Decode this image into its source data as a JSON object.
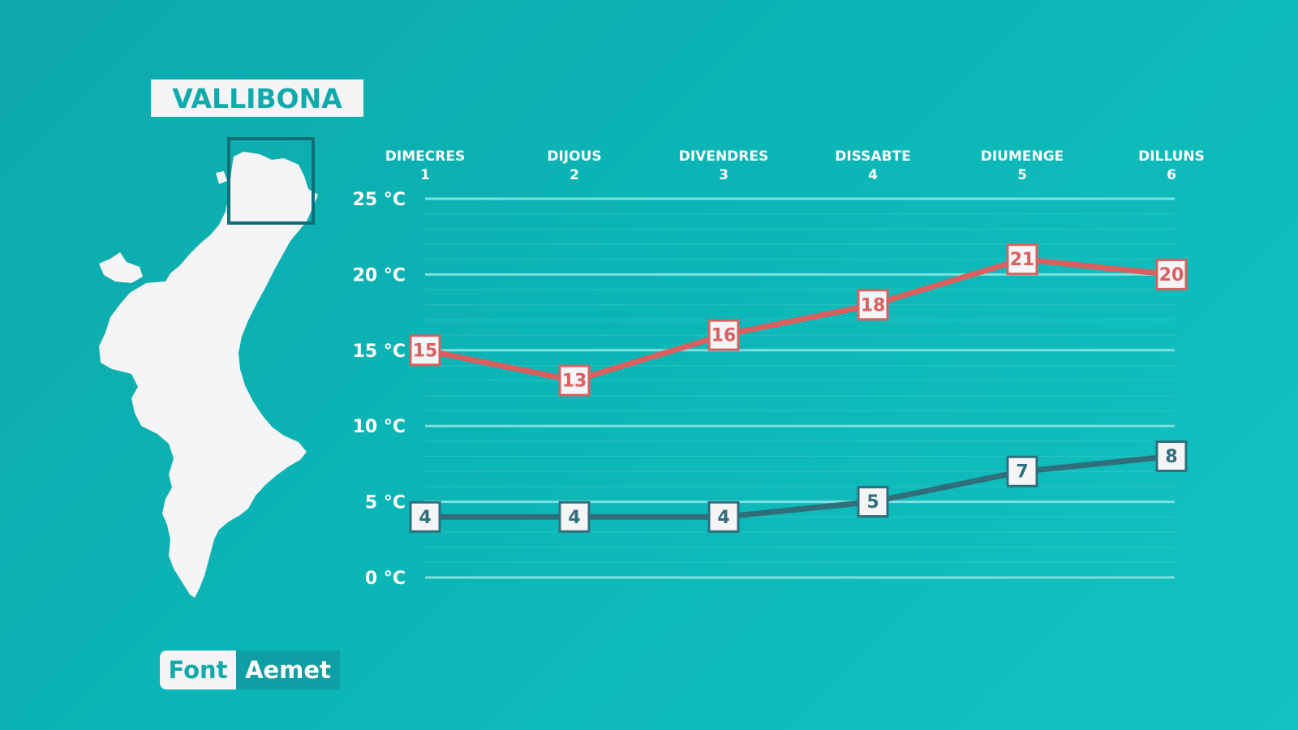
{
  "location": "VALLIBONA",
  "source": {
    "label": "Font",
    "value": "Aemet"
  },
  "colors": {
    "max_line": "#d9605f",
    "min_line": "#2f6f7c",
    "grid": "#7fe0de",
    "label_bg": "#f5f4f6"
  },
  "chart_data": {
    "type": "line",
    "categories": [
      {
        "day": "DIMECRES",
        "num": "1"
      },
      {
        "day": "DIJOUS",
        "num": "2"
      },
      {
        "day": "DIVENDRES",
        "num": "3"
      },
      {
        "day": "DISSABTE",
        "num": "4"
      },
      {
        "day": "DIUMENGE",
        "num": "5"
      },
      {
        "day": "DILLUNS",
        "num": "6"
      }
    ],
    "series": [
      {
        "values": [
          15,
          13,
          16,
          18,
          21,
          20
        ]
      },
      {
        "values": [
          4,
          4,
          4,
          5,
          7,
          8
        ]
      }
    ],
    "yticks": [
      "25 °C",
      "20 °C",
      "15 °C",
      "10 °C",
      "5 °C",
      "0 °C"
    ],
    "ytick_values": [
      25,
      20,
      15,
      10,
      5,
      0
    ],
    "ylim": [
      0,
      25
    ]
  }
}
